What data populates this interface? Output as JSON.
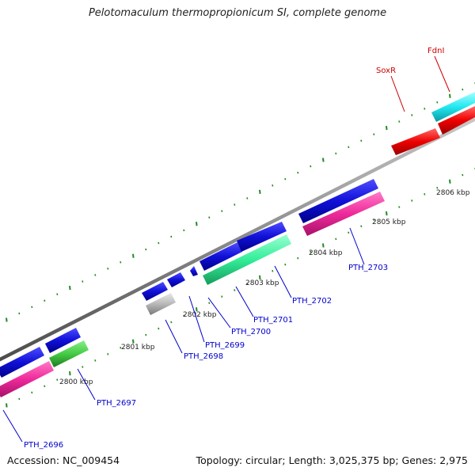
{
  "header": {
    "title": "Pelotomaculum thermopropionicum SI, complete genome"
  },
  "footer": {
    "accession": "Accession: NC_009454",
    "summary": "Topology: circular; Length: 3,025,375 bp; Genes: 2,975"
  },
  "scale": {
    "ticks": [
      "2800 kbp",
      "2801 kbp",
      "2802 kbp",
      "2803 kbp",
      "2804 kbp",
      "2805 kbp",
      "2806 kbp"
    ]
  },
  "genes": [
    {
      "label": "PTH_2696",
      "color": "#0000cc"
    },
    {
      "label": "PTH_2697",
      "color": "#0000cc"
    },
    {
      "label": "PTH_2698",
      "color": "#0000cc"
    },
    {
      "label": "PTH_2699",
      "color": "#0000cc"
    },
    {
      "label": "PTH_2700",
      "color": "#0000cc"
    },
    {
      "label": "PTH_2701",
      "color": "#0000cc"
    },
    {
      "label": "PTH_2702",
      "color": "#0000cc"
    },
    {
      "label": "PTH_2703",
      "color": "#0000cc"
    },
    {
      "label": "SoxR",
      "color": "#cc0000"
    },
    {
      "label": "FdnI",
      "color": "#cc0000"
    }
  ],
  "colors": {
    "backbone": "#8a8a8a",
    "forward_gene": "#1010d8",
    "rna_pink": "#ee2a9a",
    "rna_green": "#44cc44",
    "rna_mint": "#33ee99",
    "rna_grey": "#b8b8b8",
    "rna_cyan": "#22e8f0",
    "rna_red": "#ee0000",
    "tick_mark": "#228b22"
  }
}
